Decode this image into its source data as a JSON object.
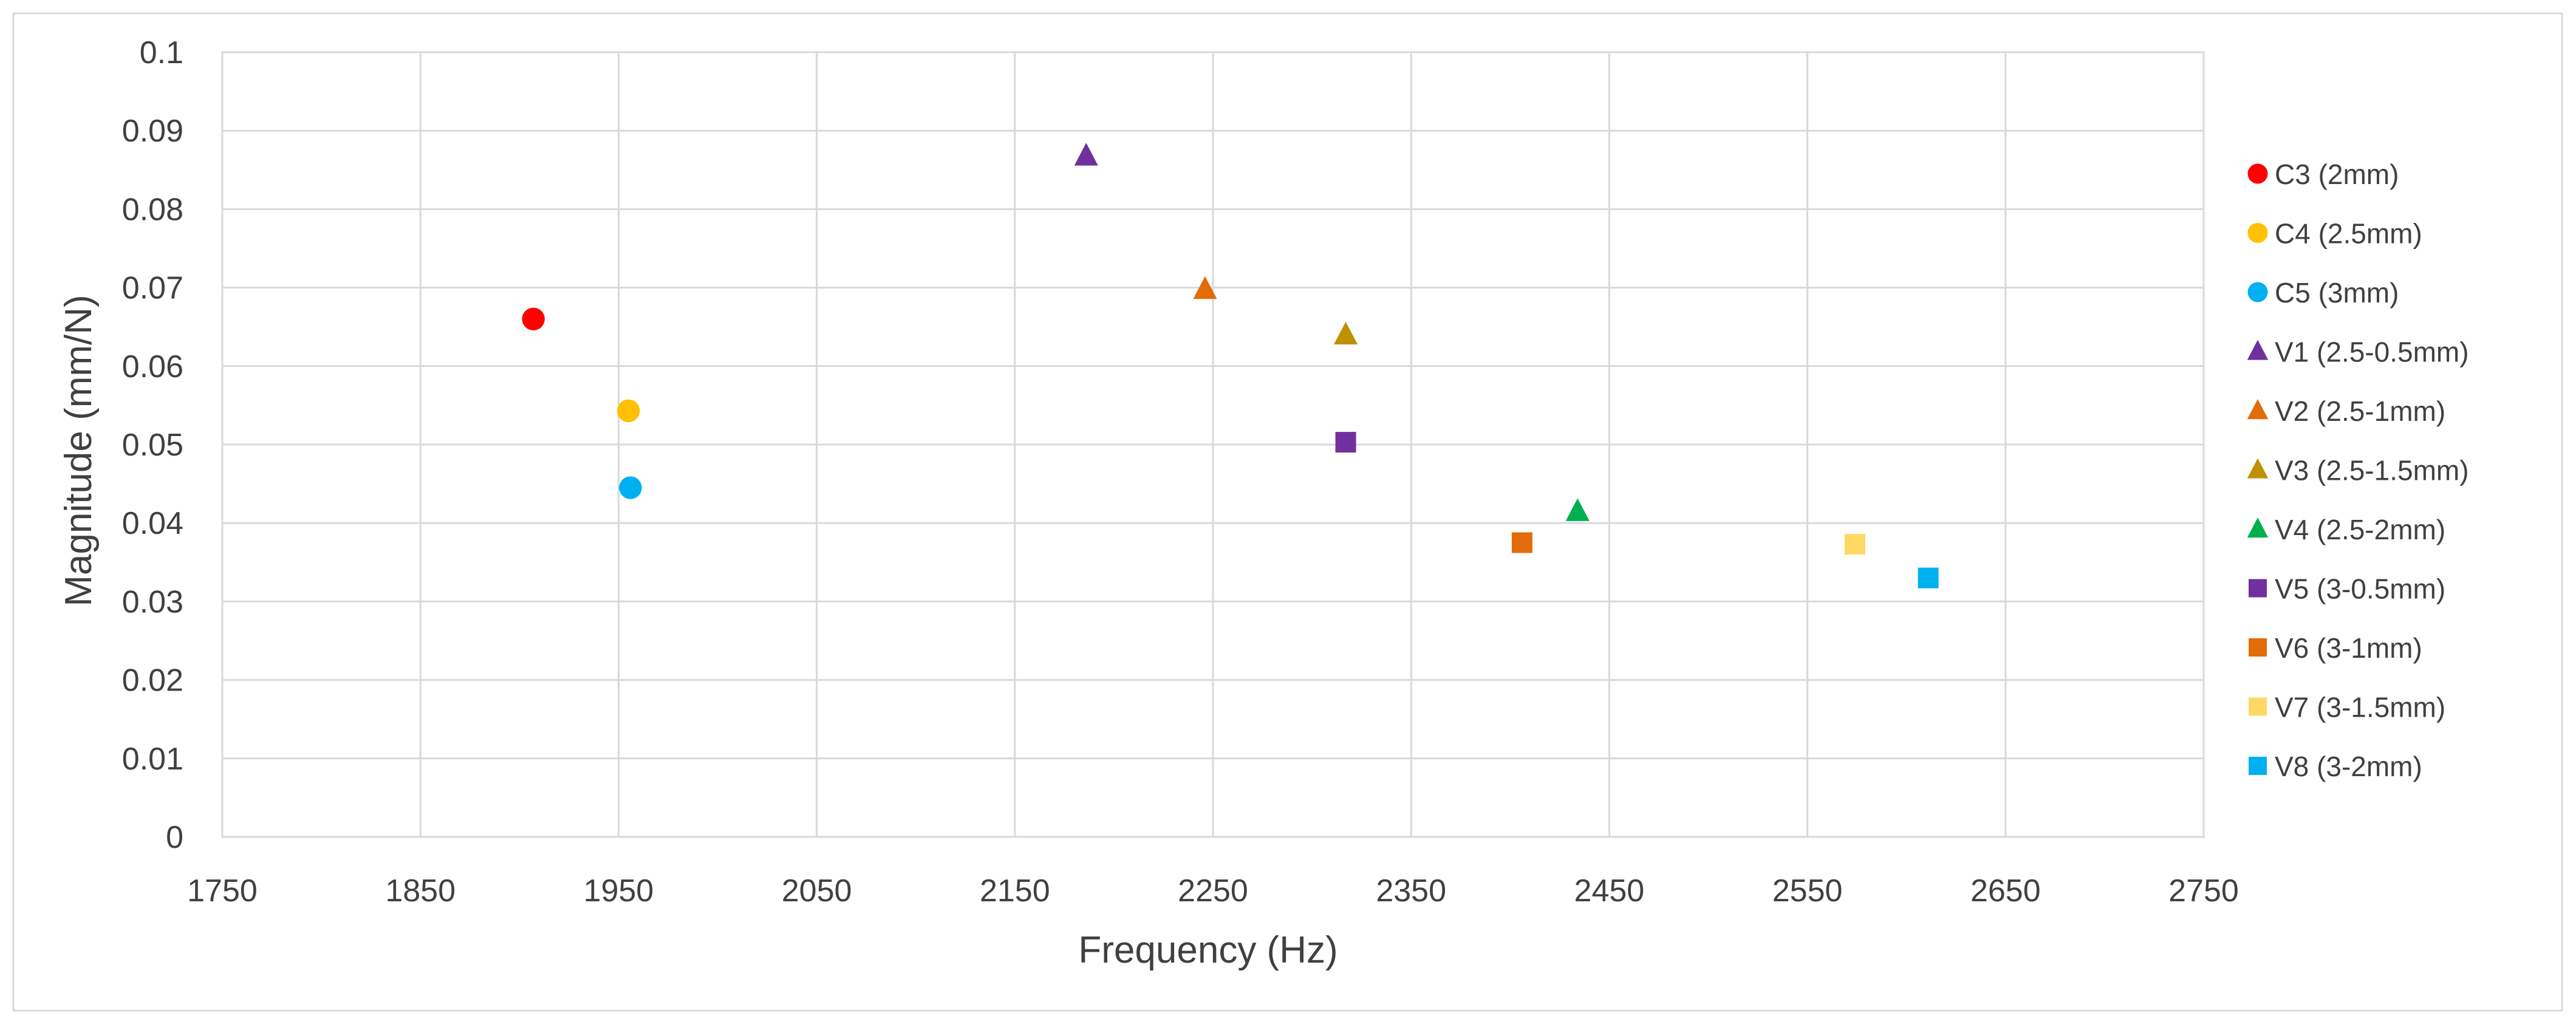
{
  "chart_data": {
    "type": "scatter",
    "title": "",
    "xlabel": "Frequency (Hz)",
    "ylabel": "Magnitude (mm/N)",
    "xlim": [
      1750,
      2750
    ],
    "ylim": [
      0,
      0.1
    ],
    "xticks": [
      1750,
      1850,
      1950,
      2050,
      2150,
      2250,
      2350,
      2450,
      2550,
      2650,
      2750
    ],
    "yticks": [
      "0",
      "0.01",
      "0.02",
      "0.03",
      "0.04",
      "0.05",
      "0.06",
      "0.07",
      "0.08",
      "0.09",
      "0.1"
    ],
    "grid": true,
    "legend_position": "right",
    "series": [
      {
        "name": "C3 (2mm)",
        "marker": "circle",
        "color": "#FF0000",
        "x": [
          1907
        ],
        "y": [
          0.066
        ]
      },
      {
        "name": "C4 (2.5mm)",
        "marker": "circle",
        "color": "#FFC000",
        "x": [
          1955
        ],
        "y": [
          0.0543
        ]
      },
      {
        "name": "C5 (3mm)",
        "marker": "circle",
        "color": "#00B0F0",
        "x": [
          1956
        ],
        "y": [
          0.0445
        ]
      },
      {
        "name": "V1 (2.5-0.5mm)",
        "marker": "triangle",
        "color": "#7030A0",
        "x": [
          2186
        ],
        "y": [
          0.0868
        ]
      },
      {
        "name": "V2 (2.5-1mm)",
        "marker": "triangle",
        "color": "#E36C0A",
        "x": [
          2246
        ],
        "y": [
          0.0698
        ]
      },
      {
        "name": "V3 (2.5-1.5mm)",
        "marker": "triangle",
        "color": "#BF9000",
        "x": [
          2317
        ],
        "y": [
          0.064
        ]
      },
      {
        "name": "V4 (2.5-2mm)",
        "marker": "triangle",
        "color": "#00B050",
        "x": [
          2434
        ],
        "y": [
          0.0415
        ]
      },
      {
        "name": "V5 (3-0.5mm)",
        "marker": "square",
        "color": "#7030A0",
        "x": [
          2317
        ],
        "y": [
          0.0503
        ]
      },
      {
        "name": "V6 (3-1mm)",
        "marker": "square",
        "color": "#E36C0A",
        "x": [
          2406
        ],
        "y": [
          0.0375
        ]
      },
      {
        "name": "V7 (3-1.5mm)",
        "marker": "square",
        "color": "#FFD966",
        "x": [
          2574
        ],
        "y": [
          0.0373
        ]
      },
      {
        "name": "V8 (3-2mm)",
        "marker": "square",
        "color": "#00B0F0",
        "x": [
          2611
        ],
        "y": [
          0.033
        ]
      }
    ]
  }
}
